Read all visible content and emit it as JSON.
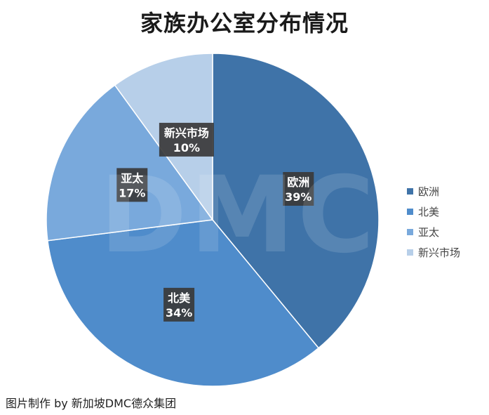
{
  "credit": "图片制作 by 新加坡DMC德众集团",
  "watermark": "DMC",
  "chart_data": {
    "type": "pie",
    "title": "家族办公室分布情况",
    "start_angle_deg": 0,
    "direction": "clockwise",
    "legend_position": "right",
    "slices": [
      {
        "label": "欧洲",
        "value": 39,
        "display": "39%",
        "color": "#3f73a8"
      },
      {
        "label": "北美",
        "value": 34,
        "display": "34%",
        "color": "#4f8ccb"
      },
      {
        "label": "亚太",
        "value": 17,
        "display": "17%",
        "color": "#79a9dc"
      },
      {
        "label": "新兴市场",
        "value": 10,
        "display": "10%",
        "color": "#b7cfe9"
      }
    ]
  }
}
